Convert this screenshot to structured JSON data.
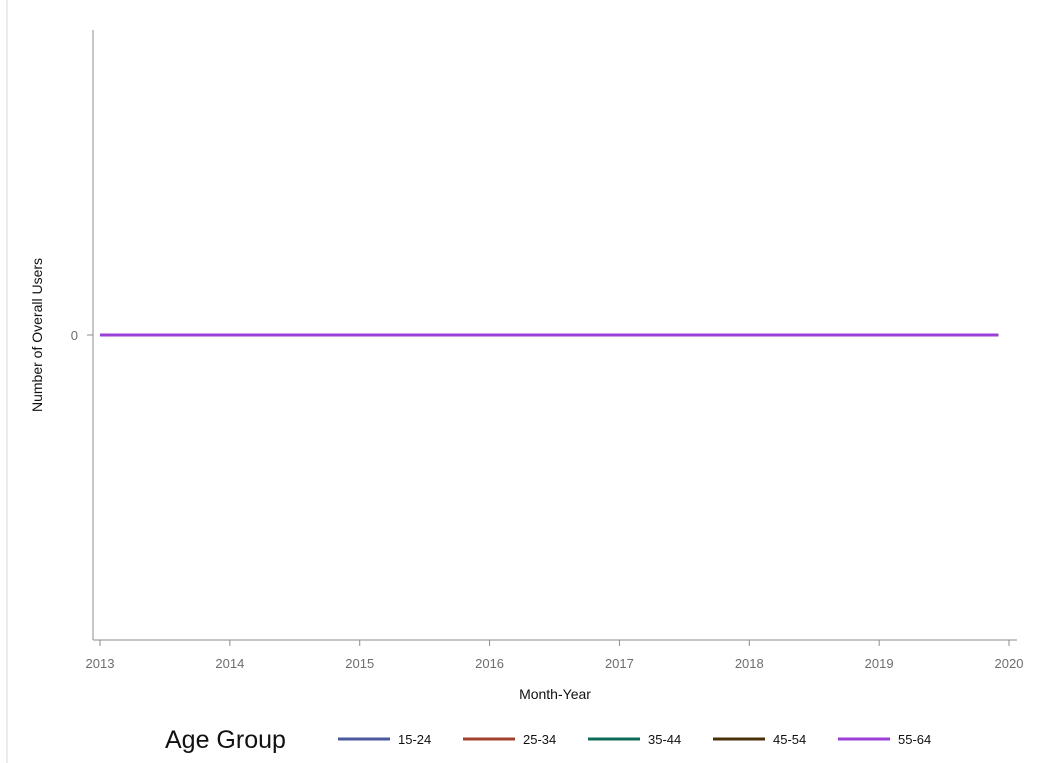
{
  "chart_data": {
    "type": "line",
    "xlabel": "Month-Year",
    "ylabel": "Number of Overall Users",
    "x_ticks": [
      "2013",
      "2014",
      "2015",
      "2016",
      "2017",
      "2018",
      "2019",
      "2020"
    ],
    "y_ticks": [
      "0"
    ],
    "xlim": [
      "2013-01",
      "2020-01"
    ],
    "x": [
      "2013-01",
      "2019-12"
    ],
    "grid": false,
    "legend": {
      "title": "Age Group",
      "placement": "bottom"
    },
    "series": [
      {
        "name": "15-24",
        "color": "#4b5a9c",
        "values": [
          0,
          0
        ]
      },
      {
        "name": "25-34",
        "color": "#a0402d",
        "values": [
          0,
          0
        ]
      },
      {
        "name": "35-44",
        "color": "#0e6b5a",
        "values": [
          0,
          0
        ]
      },
      {
        "name": "45-54",
        "color": "#4a3009",
        "values": [
          0,
          0
        ]
      },
      {
        "name": "55-64",
        "color": "#9b3fd8",
        "values": [
          0,
          0
        ]
      }
    ]
  }
}
